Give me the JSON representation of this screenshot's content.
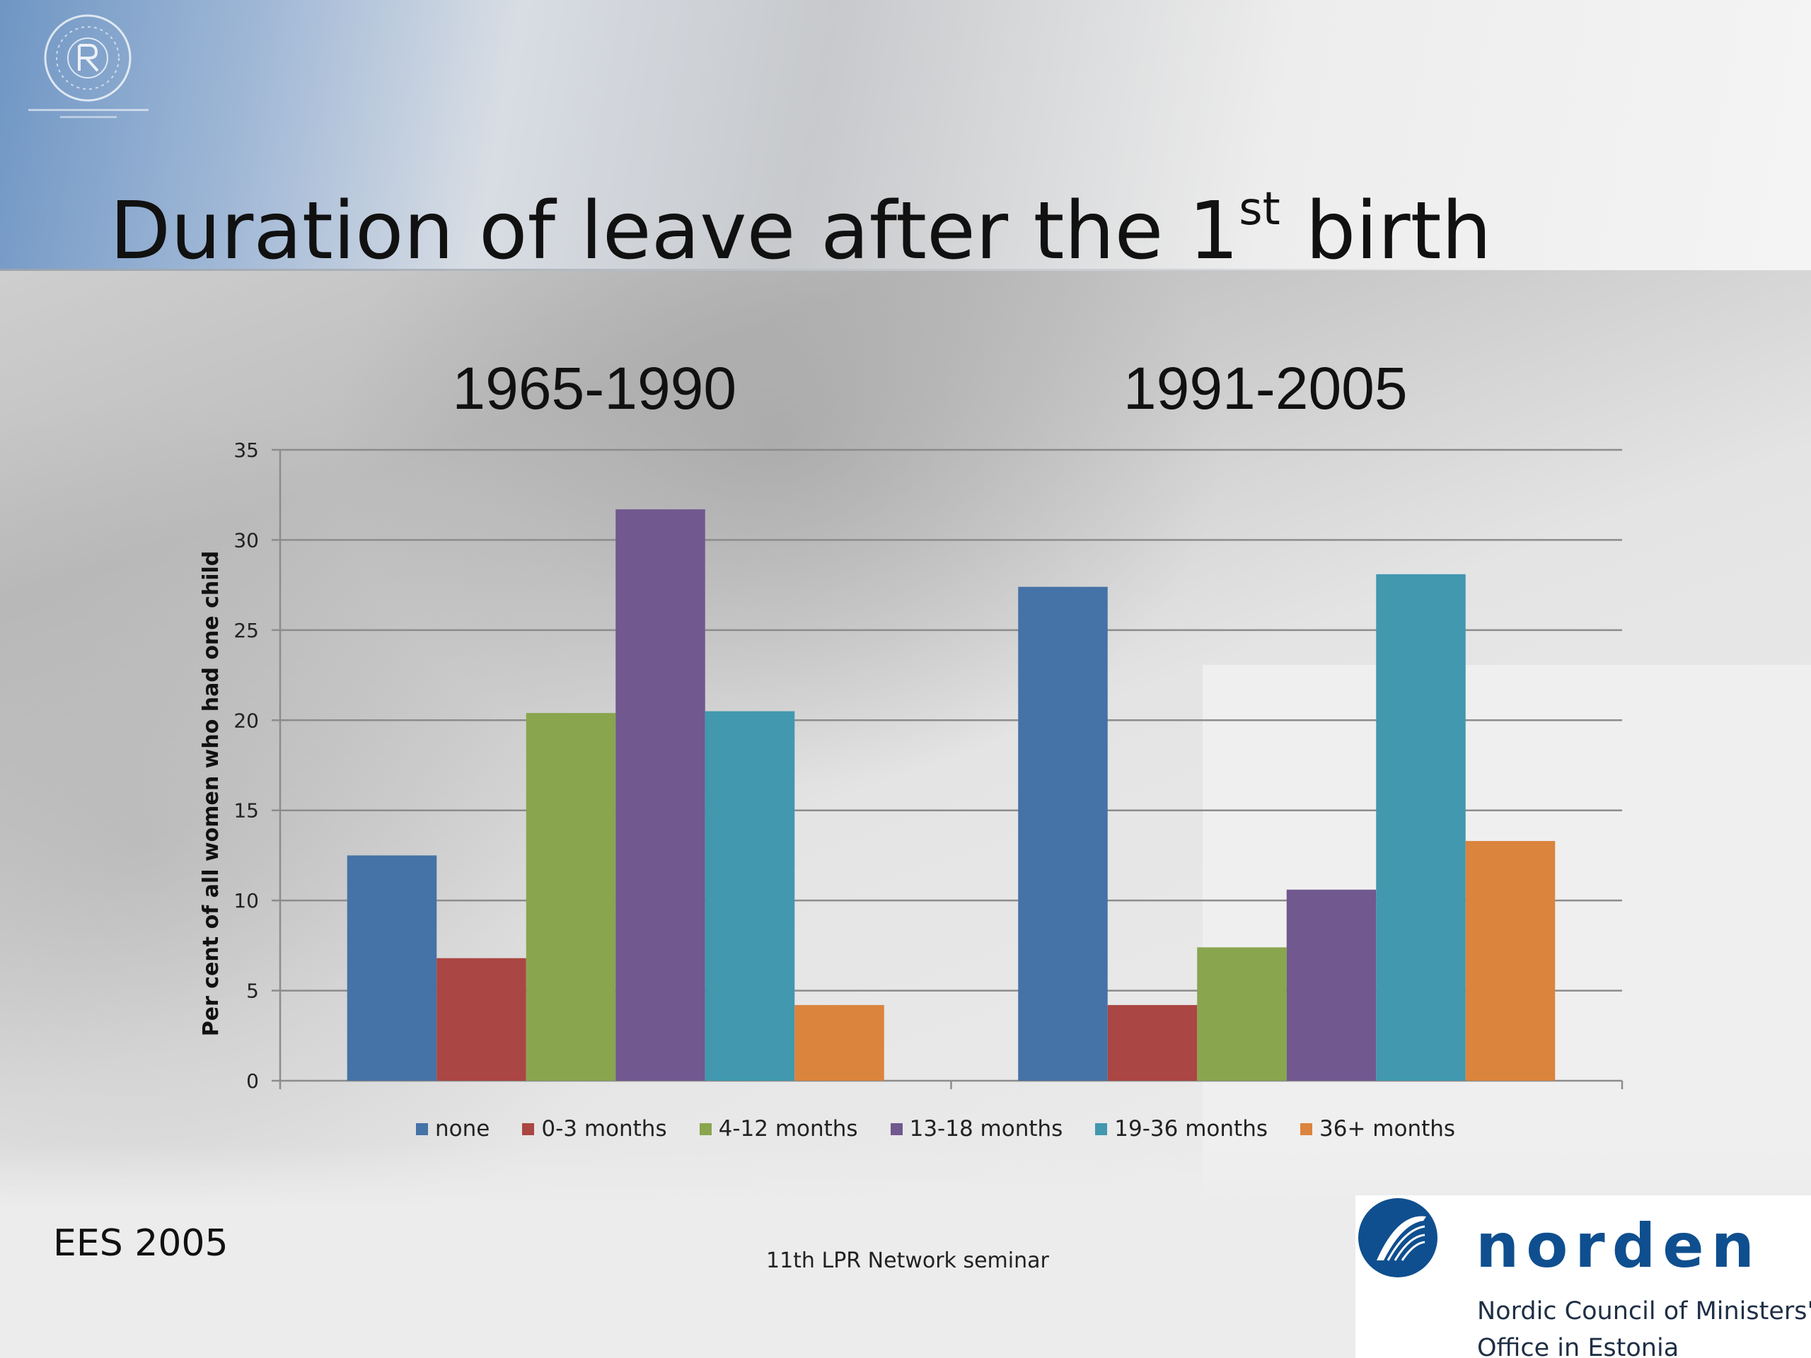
{
  "slide": {
    "title_main": "Duration of leave after the 1",
    "title_sup": "st",
    "title_end": " birth",
    "source": "EES 2005",
    "footer": "11th LPR Network seminar",
    "logo": {
      "wordmark": "norden",
      "org_line1": "Nordic Council of Ministers'",
      "org_line2": "Office in Estonia"
    }
  },
  "chart_data": {
    "type": "bar",
    "categories": [
      "1965-1990",
      "1991-2005"
    ],
    "series": [
      {
        "name": "none",
        "values": [
          12.5,
          27.4
        ],
        "color": "#4572a7"
      },
      {
        "name": "0-3 months",
        "values": [
          6.8,
          4.2
        ],
        "color": "#aa4643"
      },
      {
        "name": "4-12 months",
        "values": [
          20.4,
          7.4
        ],
        "color": "#89a54e"
      },
      {
        "name": "13-18 months",
        "values": [
          31.7,
          10.6
        ],
        "color": "#71588f"
      },
      {
        "name": "19-36 months",
        "values": [
          20.5,
          28.1
        ],
        "color": "#4198af"
      },
      {
        "name": "36+ months",
        "values": [
          4.2,
          13.3
        ],
        "color": "#db843d"
      }
    ],
    "ylabel": "Per cent of all women who had one child",
    "ylim": [
      0,
      35
    ],
    "yticks": [
      0,
      5,
      10,
      15,
      20,
      25,
      30,
      35
    ],
    "grid": true,
    "legend": "bottom"
  }
}
